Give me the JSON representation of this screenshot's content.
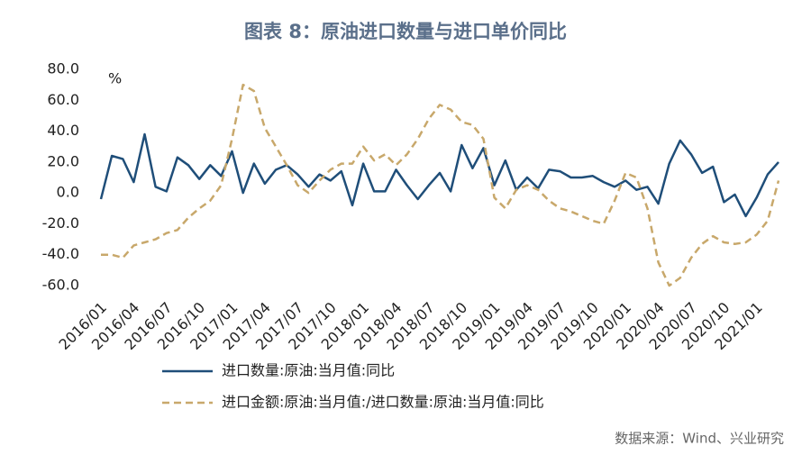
{
  "chart_data": {
    "type": "line",
    "title": "图表 8：原油进口数量与进口单价同比",
    "y_unit": "%",
    "source": "数据来源：Wind、兴业研究",
    "categories": [
      "2016/01",
      null,
      null,
      "2016/04",
      null,
      null,
      "2016/07",
      null,
      null,
      "2016/10",
      null,
      null,
      "2017/01",
      null,
      null,
      "2017/04",
      null,
      null,
      "2017/07",
      null,
      null,
      "2017/10",
      null,
      null,
      "2018/01",
      null,
      null,
      "2018/04",
      null,
      null,
      "2018/07",
      null,
      null,
      "2018/10",
      null,
      null,
      "2019/01",
      null,
      null,
      "2019/04",
      null,
      null,
      "2019/07",
      null,
      null,
      "2019/10",
      null,
      null,
      "2020/01",
      null,
      null,
      "2020/04",
      null,
      null,
      "2020/07",
      null,
      null,
      "2020/10",
      null,
      null,
      "2021/01",
      null,
      null
    ],
    "series": [
      {
        "name": "进口数量:原油:当月值:同比",
        "color": "#1f4e79",
        "dashed": false,
        "values": [
          -4,
          24,
          22,
          7,
          38,
          4,
          1,
          23,
          18,
          9,
          18,
          11,
          27,
          0,
          19,
          6,
          15,
          18,
          12,
          4,
          12,
          8,
          14,
          -8,
          19,
          1,
          1,
          15,
          5,
          -4,
          5,
          13,
          1,
          31,
          16,
          29,
          5,
          21,
          2,
          10,
          3,
          15,
          14,
          10,
          10,
          11,
          7,
          4,
          8,
          2,
          4,
          -7,
          19,
          34,
          25,
          13,
          17,
          -6,
          -1,
          -15,
          -3,
          12,
          20
        ]
      },
      {
        "name": "进口金额:原油:当月值:/进口数量:原油:当月值:同比",
        "color": "#c8a86b",
        "dashed": true,
        "values": [
          -40,
          -40,
          -42,
          -34,
          -32,
          -30,
          -26,
          -24,
          -16,
          -10,
          -5,
          5,
          35,
          70,
          66,
          42,
          30,
          18,
          5,
          0,
          8,
          15,
          19,
          19,
          30,
          21,
          25,
          18,
          25,
          35,
          48,
          57,
          54,
          46,
          44,
          35,
          -3,
          -10,
          2,
          5,
          2,
          -5,
          -10,
          -12,
          -15,
          -18,
          -20,
          -5,
          13,
          10,
          -10,
          -45,
          -60,
          -55,
          -42,
          -33,
          -28,
          -32,
          -33,
          -32,
          -27,
          -18,
          8
        ]
      }
    ],
    "ylim": [
      -60,
      80
    ],
    "yticks": [
      {
        "value": -60,
        "label": "-60.0"
      },
      {
        "value": -40,
        "label": "-40.0"
      },
      {
        "value": -20,
        "label": "-20.0"
      },
      {
        "value": 0,
        "label": "0.0"
      },
      {
        "value": 20,
        "label": "20.0"
      },
      {
        "value": 40,
        "label": "40.0"
      },
      {
        "value": 60,
        "label": "60.0"
      },
      {
        "value": 80,
        "label": "80.0"
      }
    ],
    "grid": false
  }
}
